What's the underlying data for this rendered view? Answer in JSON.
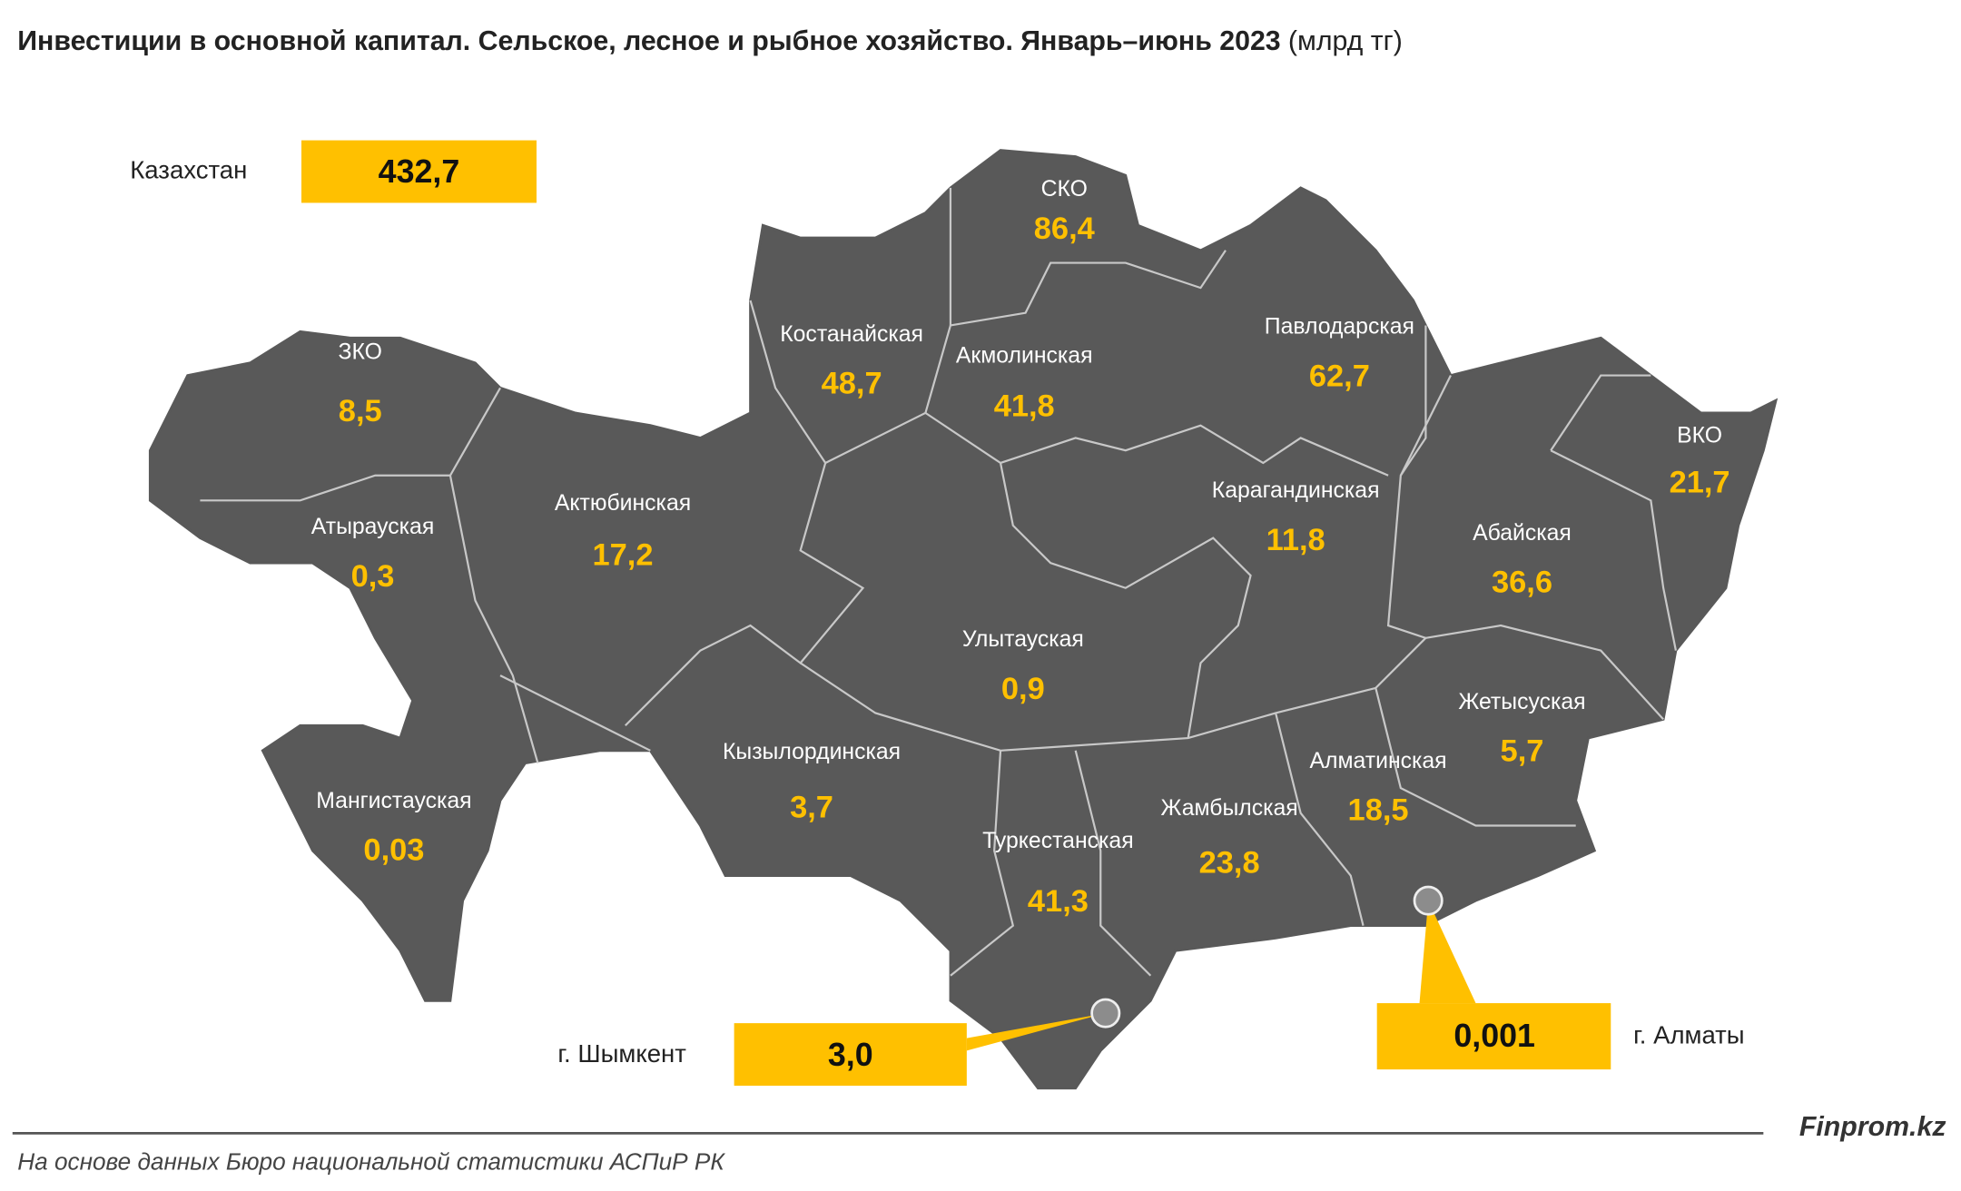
{
  "title": "Инвестиции в основной капитал. Сельское, лесное и рыбное хозяйство. Январь–июнь 2023",
  "unit": "(млрд тг)",
  "total": {
    "label": "Казахстан",
    "value": "432,7"
  },
  "regions": [
    {
      "name": "ЗКО",
      "value": "8,5"
    },
    {
      "name": "Атырауская",
      "value": "0,3"
    },
    {
      "name": "Актюбинская",
      "value": "17,2"
    },
    {
      "name": "Мангистауская",
      "value": "0,03"
    },
    {
      "name": "Костанайская",
      "value": "48,7"
    },
    {
      "name": "СКО",
      "value": "86,4"
    },
    {
      "name": "Акмолинская",
      "value": "41,8"
    },
    {
      "name": "Павлодарская",
      "value": "62,7"
    },
    {
      "name": "ВКО",
      "value": "21,7"
    },
    {
      "name": "Карагандинская",
      "value": "11,8"
    },
    {
      "name": "Абайская",
      "value": "36,6"
    },
    {
      "name": "Улытауская",
      "value": "0,9"
    },
    {
      "name": "Жетысуская",
      "value": "5,7"
    },
    {
      "name": "Алматинская",
      "value": "18,5"
    },
    {
      "name": "Кызылординская",
      "value": "3,7"
    },
    {
      "name": "Жамбылская",
      "value": "23,8"
    },
    {
      "name": "Туркестанская",
      "value": "41,3"
    }
  ],
  "cities": [
    {
      "name": "г. Шымкент",
      "value": "3,0"
    },
    {
      "name": "г. Алматы",
      "value": "0,001"
    }
  ],
  "source": "На основе данных Бюро национальной статистики АСПиР РК",
  "brand": "Finprom.kz"
}
